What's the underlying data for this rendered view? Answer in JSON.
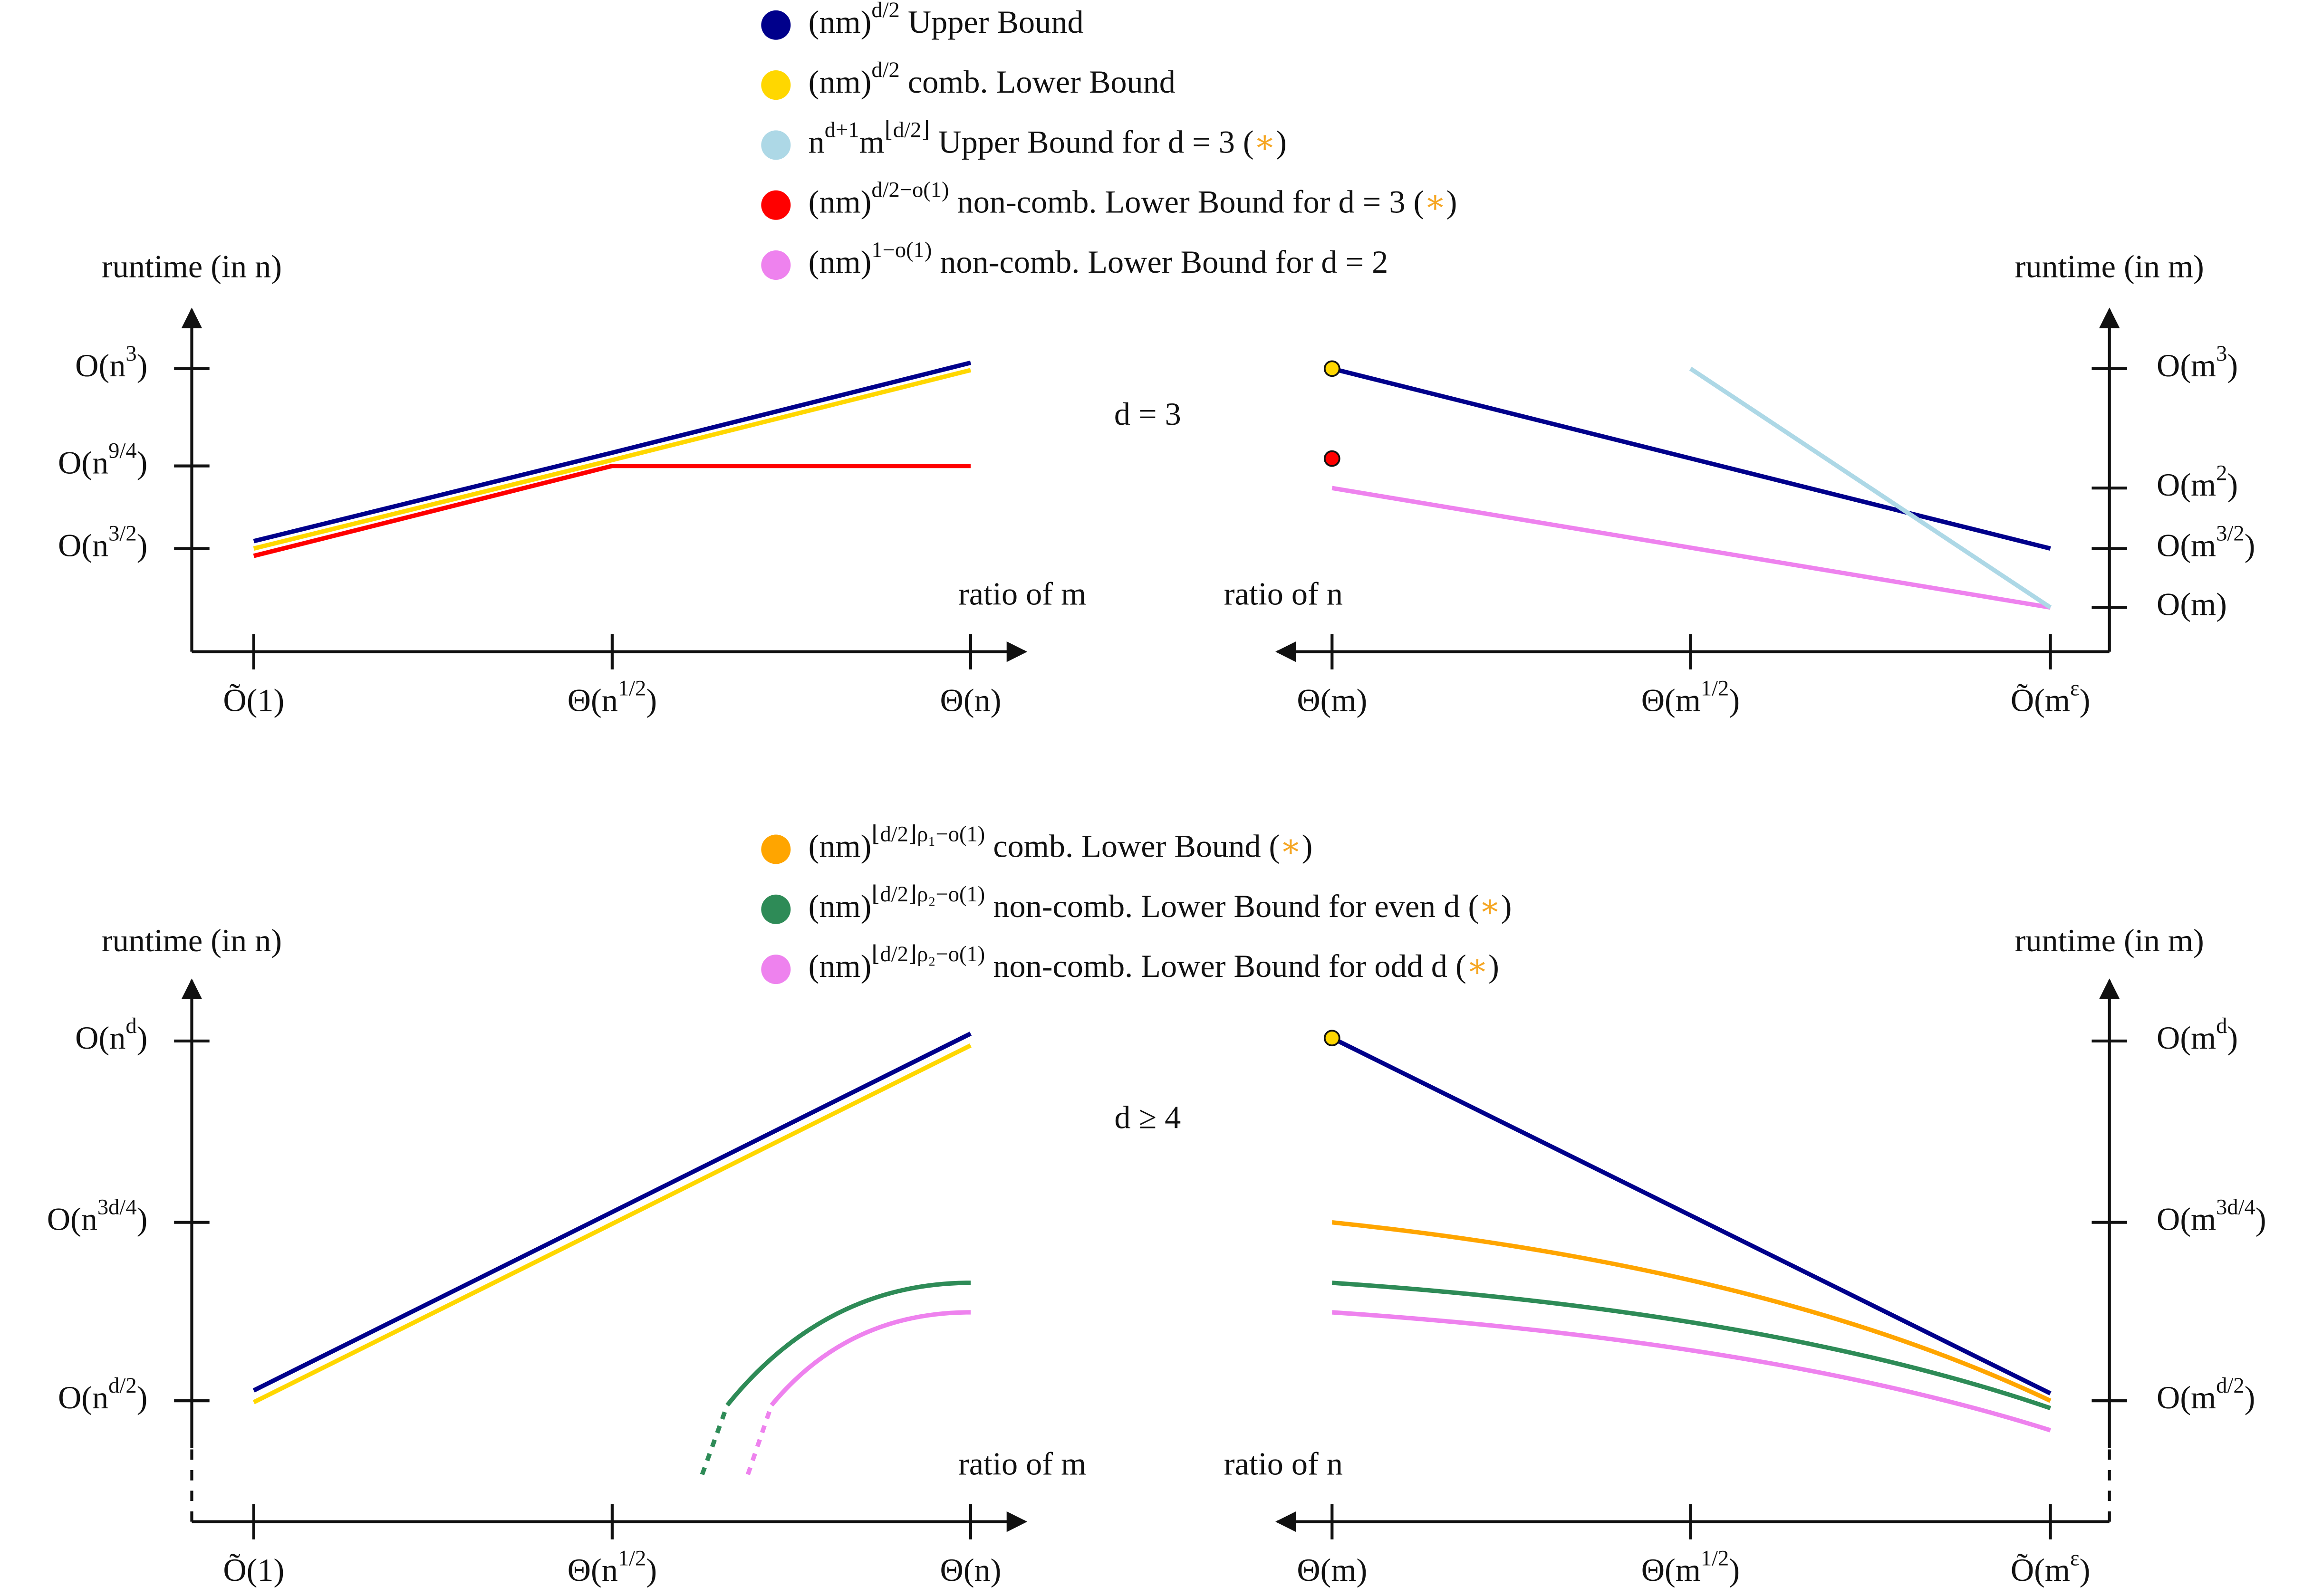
{
  "legend_top": [
    {
      "color": "#00008b",
      "parts": [
        "(nm)",
        {
          "sup": "d/2"
        },
        " Upper Bound"
      ]
    },
    {
      "color": "#ffd700",
      "parts": [
        "(nm)",
        {
          "sup": "d/2"
        },
        " comb. Lower Bound"
      ]
    },
    {
      "color": "#add8e6",
      "parts": [
        "n",
        {
          "sup": "d+1"
        },
        "m",
        {
          "sup": "⌊d/2⌋"
        },
        " Upper Bound for d = 3 (",
        {
          "star": "∗"
        },
        ")"
      ]
    },
    {
      "color": "#ff0000",
      "parts": [
        "(nm)",
        {
          "sup": "d/2−o(1)"
        },
        " non-comb. Lower Bound for d = 3 (",
        {
          "star": "∗"
        },
        ")"
      ]
    },
    {
      "color": "#ee82ee",
      "parts": [
        "(nm)",
        {
          "sup": "1−o(1)"
        },
        " non-comb. Lower Bound for d = 2"
      ]
    }
  ],
  "legend_bottom": [
    {
      "color": "#ffa500",
      "parts": [
        "(nm)",
        {
          "sup": "⌊d/2⌋ρ₁−o(1)"
        },
        " comb. Lower Bound (",
        {
          "star": "∗"
        },
        ")"
      ]
    },
    {
      "color": "#2e8b57",
      "parts": [
        "(nm)",
        {
          "sup": "⌊d/2⌋ρ₂−o(1)"
        },
        " non-comb. Lower Bound for even d (",
        {
          "star": "∗"
        },
        ")"
      ]
    },
    {
      "color": "#ee82ee",
      "parts": [
        "(nm)",
        {
          "sup": "⌊d/2⌋ρ₂−o(1)"
        },
        " non-comb. Lower Bound for odd d (",
        {
          "star": "∗"
        },
        ")"
      ]
    }
  ],
  "panels": [
    {
      "label": [
        "d = 3"
      ],
      "left": {
        "y_title": "runtime (in n)",
        "x_title": "ratio of m",
        "yticks": [
          [
            "O(n",
            {
              "sup": "3"
            },
            ")"
          ],
          [
            "O(n",
            {
              "sup": "9/4"
            },
            ")"
          ],
          [
            "O(n",
            {
              "sup": "3/2"
            },
            ")"
          ]
        ],
        "xticks": [
          [
            "Õ(1)"
          ],
          [
            "Θ(n",
            {
              "sup": "1/2"
            },
            ")"
          ],
          [
            "Θ(n)"
          ]
        ]
      },
      "right": {
        "y_title": "runtime (in m)",
        "x_title": "ratio of n",
        "yticks": [
          [
            "O(m",
            {
              "sup": "3"
            },
            ")"
          ],
          [
            "O(m",
            {
              "sup": "2"
            },
            ")"
          ],
          [
            "O(m",
            {
              "sup": "3/2"
            },
            ")"
          ],
          [
            "O(m)"
          ]
        ],
        "xticks": [
          [
            "Θ(m)"
          ],
          [
            "Θ(m",
            {
              "sup": "1/2"
            },
            ")"
          ],
          [
            "Õ(m",
            {
              "sup": "ε"
            },
            ")"
          ]
        ]
      }
    },
    {
      "label": [
        "d ≥ 4"
      ],
      "left": {
        "y_title": "runtime (in n)",
        "x_title": "ratio of m",
        "yticks": [
          [
            "O(n",
            {
              "sup": "d"
            },
            ")"
          ],
          [
            "O(n",
            {
              "sup": "3d/4"
            },
            ")"
          ],
          [
            "O(n",
            {
              "sup": "d/2"
            },
            ")"
          ]
        ],
        "xticks": [
          [
            "Õ(1)"
          ],
          [
            "Θ(n",
            {
              "sup": "1/2"
            },
            ")"
          ],
          [
            "Θ(n)"
          ]
        ]
      },
      "right": {
        "y_title": "runtime (in m)",
        "x_title": "ratio of n",
        "yticks": [
          [
            "O(m",
            {
              "sup": "d"
            },
            ")"
          ],
          [
            "O(m",
            {
              "sup": "3d/4"
            },
            ")"
          ],
          [
            "O(m",
            {
              "sup": "d/2"
            },
            ")"
          ]
        ],
        "xticks": [
          [
            "Θ(m)"
          ],
          [
            "Θ(m",
            {
              "sup": "1/2"
            },
            ")"
          ],
          [
            "Õ(m",
            {
              "sup": "ε"
            },
            ")"
          ]
        ]
      }
    }
  ]
}
